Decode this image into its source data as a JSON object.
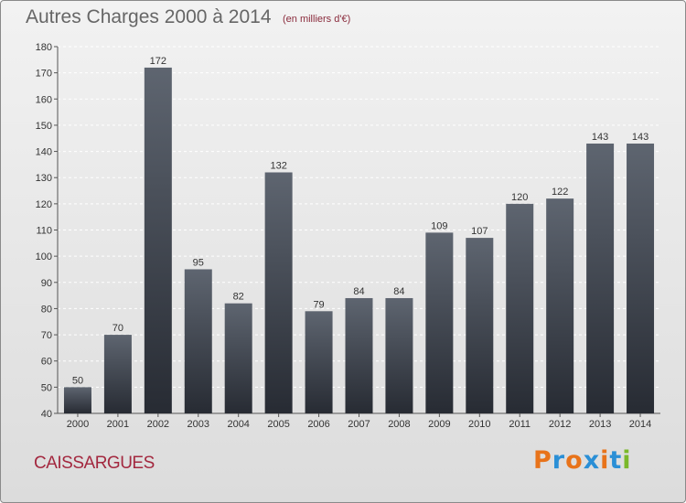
{
  "header": {
    "title": "Autres Charges 2000 à 2014",
    "subtitle": "(en milliers d'€)"
  },
  "footer": {
    "place": "CAISSARGUES",
    "logo_text": "Proxiti",
    "logo_colors": [
      "#e8731a",
      "#2a8fd6",
      "#e8731a",
      "#2a8fd6",
      "#e8731a",
      "#2a8fd6",
      "#7ab82a"
    ]
  },
  "colors": {
    "bar_top": "#5e6570",
    "bar_bottom": "#272b33",
    "title": "#666666",
    "place": "#a3283f"
  },
  "chart_data": {
    "type": "bar",
    "title": "Autres Charges 2000 à 2014",
    "subtitle": "(en milliers d'€)",
    "xlabel": "",
    "ylabel": "",
    "categories": [
      "2000",
      "2001",
      "2002",
      "2003",
      "2004",
      "2005",
      "2006",
      "2007",
      "2008",
      "2009",
      "2010",
      "2011",
      "2012",
      "2013",
      "2014"
    ],
    "values": [
      50,
      70,
      172,
      95,
      82,
      132,
      79,
      84,
      84,
      109,
      107,
      120,
      122,
      143,
      143
    ],
    "ylim": [
      40,
      180
    ],
    "yticks": [
      40,
      50,
      60,
      70,
      80,
      90,
      100,
      110,
      120,
      130,
      140,
      150,
      160,
      170,
      180
    ],
    "grid": true,
    "legend": "none",
    "data_labels": true
  }
}
